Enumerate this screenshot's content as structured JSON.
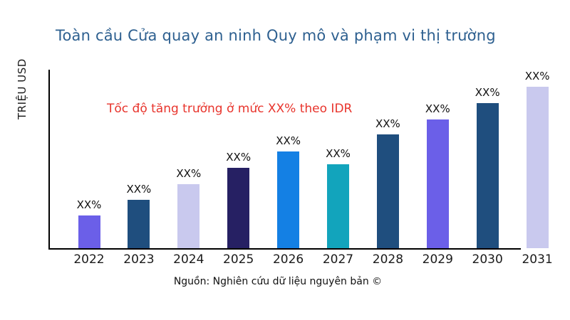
{
  "title": "Toàn cầu Cửa quay an ninh Quy mô và phạm vi thị trường",
  "title_color": "#2e6090",
  "annotation": {
    "text": "Tốc độ tăng trưởng ở mức XX% theo IDR",
    "color": "#e8342c"
  },
  "y_axis_label": "TRIỆU USD",
  "source": "Nguồn: Nghiên cứu dữ liệu nguyên bản ©",
  "chart_data": {
    "type": "bar",
    "title": "Toàn cầu Cửa quay an ninh Quy mô và phạm vi thị trường",
    "xlabel": "",
    "ylabel": "TRIỆU USD",
    "categories": [
      "2022",
      "2023",
      "2024",
      "2025",
      "2026",
      "2027",
      "2028",
      "2029",
      "2030",
      "2031"
    ],
    "values": [
      46,
      68,
      90,
      113,
      136,
      118,
      160,
      181,
      204,
      227
    ],
    "value_labels": [
      "XX%",
      "XX%",
      "XX%",
      "XX%",
      "XX%",
      "XX%",
      "XX%",
      "XX%",
      "XX%",
      "XX%"
    ],
    "bar_colors": [
      "#6b5fe8",
      "#1f4e7e",
      "#c9c9ee",
      "#262063",
      "#1480e4",
      "#12a4bc",
      "#1f4e7e",
      "#6b5fe8",
      "#1f4e7e",
      "#c9c9ee"
    ],
    "annotation": "Tốc độ tăng trưởng ở mức XX% theo IDR",
    "ylim": [
      0,
      250
    ],
    "grid": false,
    "legend": false,
    "note": "values are relative bar magnitudes; numeric labels are masked as XX% in the source image"
  }
}
